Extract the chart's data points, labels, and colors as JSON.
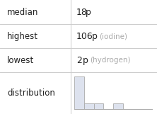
{
  "median": "18",
  "median_unit": "p",
  "highest_val": "106",
  "highest_unit": "p",
  "highest_label": "(iodine)",
  "lowest_val": "2",
  "lowest_unit": "p",
  "lowest_label": "(hydrogen)",
  "row_labels": [
    "median",
    "highest",
    "lowest",
    "distribution"
  ],
  "bar_heights_norm": [
    6,
    1,
    1,
    0,
    1,
    0,
    0,
    0
  ],
  "background_color": "#ffffff",
  "bar_color": "#dde2ee",
  "bar_edge_color": "#aaaaaa",
  "text_color": "#222222",
  "gray_text_color": "#aaaaaa",
  "line_color": "#cccccc",
  "font_size": 8.5,
  "value_font_size": 9,
  "gray_font_size": 7.5
}
